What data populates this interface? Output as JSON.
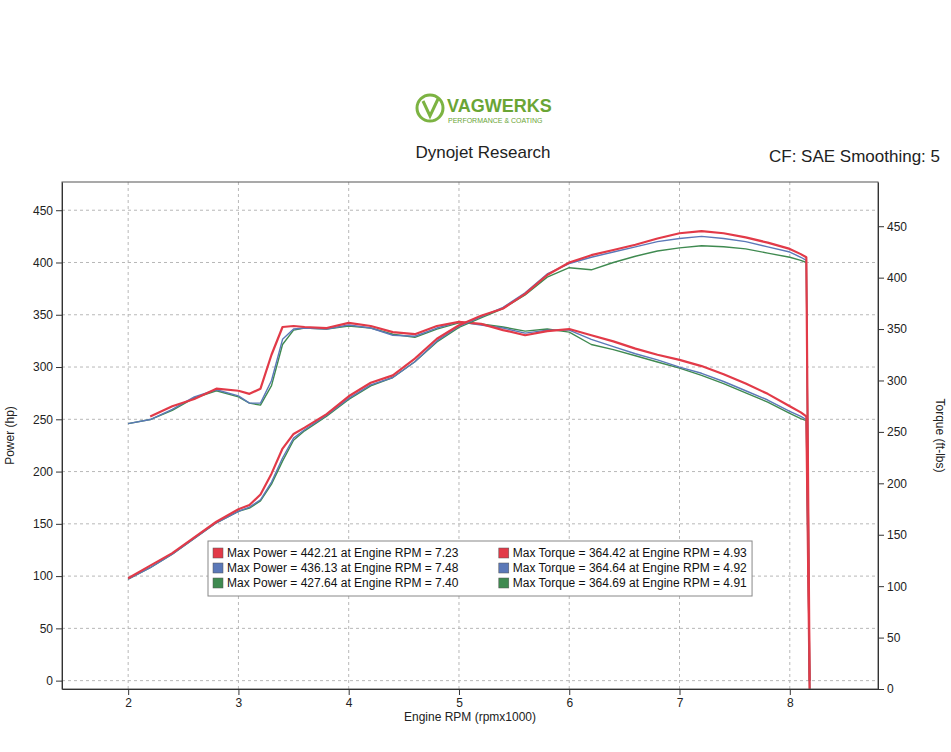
{
  "chart_data": {
    "type": "line",
    "title": "Dynojet Research",
    "annotations": [
      {
        "text": "VAGWERKS"
      },
      {
        "text": "PERFORMANCE & COATING"
      },
      {
        "text": "CF: SAE Smoothing: 5"
      }
    ],
    "x_label": "Engine RPM (rpmx1000)",
    "y_label": "Power (hp)",
    "y2_label": "Torque (ft-lbs)",
    "x": [
      2.0,
      2.2,
      2.4,
      2.6,
      2.8,
      3.0,
      3.1,
      3.2,
      3.3,
      3.4,
      3.5,
      3.6,
      3.8,
      4.0,
      4.2,
      4.4,
      4.6,
      4.8,
      5.0,
      5.2,
      5.4,
      5.6,
      5.8,
      6.0,
      6.2,
      6.4,
      6.6,
      6.8,
      7.0,
      7.2,
      7.4,
      7.6,
      7.8,
      8.0,
      8.1,
      8.15,
      8.18
    ],
    "xlim": [
      1.4,
      8.8
    ],
    "xticks": [
      2,
      3,
      4,
      5,
      6,
      7,
      8
    ],
    "ylim": [
      -8,
      477
    ],
    "yticks": [
      0,
      50,
      100,
      150,
      200,
      250,
      300,
      350,
      400,
      450
    ],
    "y2lim": [
      0,
      493
    ],
    "y2ticks": [
      0,
      50,
      100,
      150,
      200,
      250,
      300,
      350,
      400,
      450
    ],
    "grid": true,
    "legend": "lower center",
    "series": [
      {
        "name": "Max Power = 442.21 at Engine RPM = 7.23",
        "color": "#e23a48",
        "axis": "y",
        "values": [
          98,
          110,
          122,
          137,
          152,
          164,
          168,
          178,
          198,
          222,
          236,
          242,
          255,
          272,
          285,
          292,
          308,
          327,
          340,
          349,
          356,
          370,
          388,
          400,
          407,
          412,
          417,
          423,
          428,
          430,
          428,
          424,
          419,
          413,
          408,
          405,
          0
        ]
      },
      {
        "name": "Max Power = 436.13 at Engine RPM = 7.48",
        "color": "#5b78b8",
        "axis": "y",
        "values": [
          97,
          108,
          121,
          136,
          151,
          162,
          166,
          173,
          190,
          213,
          232,
          240,
          254,
          270,
          283,
          290,
          305,
          325,
          339,
          348,
          357,
          371,
          389,
          399,
          405,
          410,
          415,
          420,
          423,
          425,
          423,
          420,
          415,
          410,
          405,
          402,
          0
        ]
      },
      {
        "name": "Max Power = 427.64 at Engine RPM = 7.40",
        "color": "#3f8a50",
        "axis": "y",
        "values": [
          97,
          108,
          121,
          136,
          151,
          162,
          165,
          172,
          188,
          210,
          230,
          239,
          253,
          269,
          282,
          290,
          305,
          324,
          338,
          347,
          356,
          369,
          386,
          395,
          393,
          400,
          406,
          411,
          414,
          416,
          415,
          413,
          409,
          405,
          402,
          400,
          0
        ]
      },
      {
        "name": "Max Torque = 364.42 at Engine RPM = 4.93",
        "color": "#e23a48",
        "axis": "y2",
        "values": [
          null,
          265,
          275,
          282,
          292,
          290,
          287,
          292,
          325,
          352,
          353,
          352,
          351,
          356,
          353,
          347,
          345,
          353,
          357,
          355,
          349,
          344,
          348,
          350,
          344,
          338,
          331,
          325,
          320,
          314,
          306,
          297,
          287,
          275,
          269,
          265,
          0
        ]
      },
      {
        "name": "Max Torque = 364.64 at Engine RPM = 4.92",
        "color": "#5b78b8",
        "axis": "y2",
        "values": [
          258,
          262,
          272,
          284,
          291,
          285,
          278,
          278,
          300,
          340,
          350,
          351,
          350,
          354,
          351,
          344,
          343,
          351,
          357,
          354,
          351,
          346,
          349,
          349,
          340,
          333,
          326,
          320,
          313,
          307,
          299,
          290,
          281,
          270,
          265,
          262,
          0
        ]
      },
      {
        "name": "Max Torque = 364.69 at Engine RPM = 4.91",
        "color": "#3f8a50",
        "axis": "y2",
        "values": [
          258,
          262,
          271,
          283,
          290,
          284,
          278,
          276,
          295,
          335,
          349,
          351,
          350,
          353,
          351,
          345,
          342,
          350,
          356,
          355,
          352,
          348,
          350,
          347,
          335,
          330,
          324,
          318,
          312,
          305,
          297,
          288,
          279,
          268,
          263,
          261,
          0
        ]
      }
    ]
  }
}
